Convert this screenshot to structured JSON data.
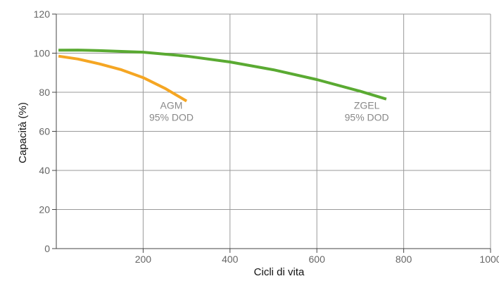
{
  "chart_data": {
    "type": "line",
    "title": "",
    "xlabel": "Cicli di vita",
    "ylabel": "Capacità (%)",
    "xlim": [
      0,
      1000
    ],
    "ylim": [
      0,
      120
    ],
    "x_ticks": [
      200,
      400,
      600,
      800,
      1000
    ],
    "y_ticks": [
      0,
      20,
      40,
      60,
      80,
      100,
      120
    ],
    "grid": true,
    "series": [
      {
        "color": "#f5a623",
        "x": [
          5,
          50,
          100,
          150,
          200,
          250,
          300
        ],
        "y": [
          98.5,
          97,
          94.5,
          91.5,
          87.5,
          82,
          75.5
        ]
      },
      {
        "color": "#5aaa32",
        "x": [
          5,
          50,
          100,
          200,
          300,
          400,
          500,
          600,
          700,
          760
        ],
        "y": [
          101.5,
          101.6,
          101.3,
          100.5,
          98.5,
          95.5,
          91.5,
          86.5,
          80.5,
          76.5
        ]
      }
    ],
    "annotations": [
      {
        "lines": [
          "AGM",
          "95% DOD"
        ],
        "x": 265,
        "y": 71.5
      },
      {
        "lines": [
          "ZGEL",
          "95% DOD"
        ],
        "x": 715,
        "y": 71.5
      }
    ]
  }
}
